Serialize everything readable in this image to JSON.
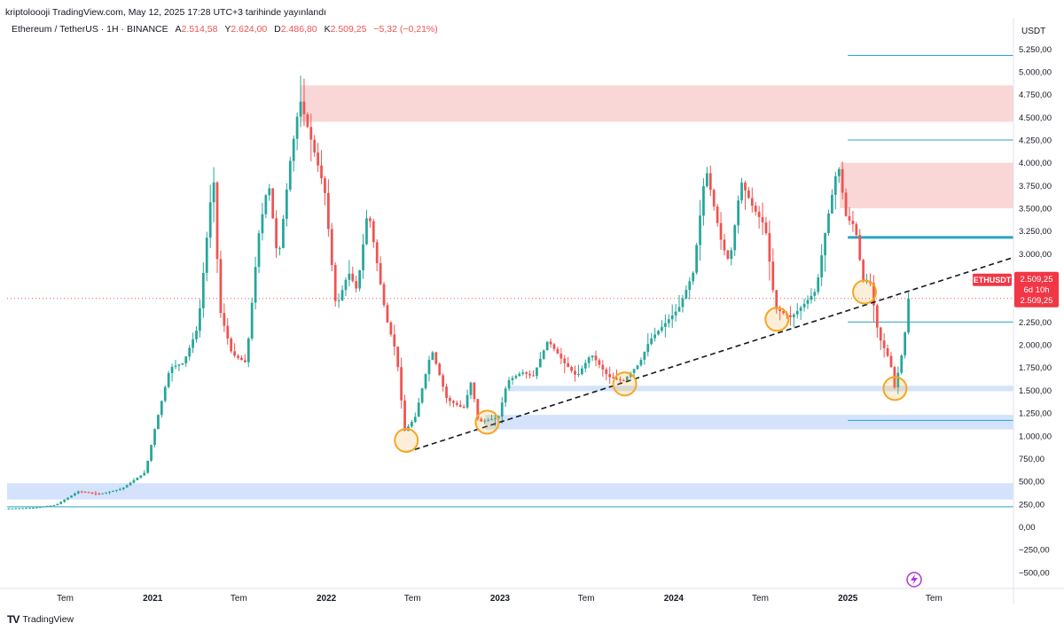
{
  "header": {
    "publish_line": "kriptoloooji TradingView.com, May 12, 2025 17:28 UTC+3 tarihinde yayınlandı"
  },
  "legend": {
    "symbol": "Ethereum / TetherUS · 1H · BINANCE",
    "open_label": "A",
    "open_value": "2.514,58",
    "high_label": "Y",
    "high_value": "2.624,00",
    "low_label": "D",
    "low_value": "2.486,80",
    "close_label": "K",
    "close_value": "2.509,25",
    "change": "−5,32 (−0,21%)"
  },
  "footer": {
    "brand": "TradingView"
  },
  "colors": {
    "up": "#26a69a",
    "down": "#ef5350",
    "resistance_zone": "#f8d0d0",
    "support_zone": "#cfe0fb",
    "level_line": "#26a5c7",
    "trendline": "#131722",
    "circle": "#f5a623",
    "price_badge": "#f23645"
  },
  "chart_data": {
    "type": "candlestick",
    "title": "Ethereum / TetherUS · 1H · BINANCE",
    "currency_label": "USDT",
    "y_ticks": [
      "5.250,00",
      "5.000,00",
      "4.750,00",
      "4.500,00",
      "4.250,00",
      "4.000,00",
      "3.750,00",
      "3.500,00",
      "3.250,00",
      "3.000,00",
      "2.750,00",
      "2.500,00",
      "2.250,00",
      "2.000,00",
      "1.750,00",
      "1.500,00",
      "1.250,00",
      "1.000,00",
      "750,00",
      "500,00",
      "250,00",
      "0,00",
      "−250,00",
      "−500,00"
    ],
    "y_tick_values": [
      5250,
      5000,
      4750,
      4500,
      4250,
      4000,
      3750,
      3500,
      3250,
      3000,
      2750,
      2500,
      2250,
      2000,
      1750,
      1500,
      1250,
      1000,
      750,
      500,
      250,
      0,
      -250,
      -500
    ],
    "ylim": [
      -560,
      5350
    ],
    "x_ticks": [
      {
        "label": "Tem",
        "date": "2020-07-01"
      },
      {
        "label": "2021",
        "date": "2021-01-01"
      },
      {
        "label": "Tem",
        "date": "2021-07-01"
      },
      {
        "label": "2022",
        "date": "2022-01-01"
      },
      {
        "label": "Tem",
        "date": "2022-07-01"
      },
      {
        "label": "2023",
        "date": "2023-01-01"
      },
      {
        "label": "Tem",
        "date": "2023-07-01"
      },
      {
        "label": "2024",
        "date": "2024-01-01"
      },
      {
        "label": "Tem",
        "date": "2024-07-01"
      },
      {
        "label": "2025",
        "date": "2025-01-01"
      },
      {
        "label": "Tem",
        "date": "2025-07-01"
      }
    ],
    "xlim": [
      "2020-03-01",
      "2025-12-15"
    ],
    "price_path": [
      [
        "2020-03-01",
        200
      ],
      [
        "2020-05-01",
        210
      ],
      [
        "2020-06-15",
        240
      ],
      [
        "2020-08-01",
        390
      ],
      [
        "2020-09-15",
        360
      ],
      [
        "2020-11-01",
        420
      ],
      [
        "2020-12-20",
        600
      ],
      [
        "2021-01-10",
        1100
      ],
      [
        "2021-02-10",
        1750
      ],
      [
        "2021-03-10",
        1800
      ],
      [
        "2021-04-10",
        2200
      ],
      [
        "2021-05-12",
        3900
      ],
      [
        "2021-05-25",
        2400
      ],
      [
        "2021-06-20",
        1900
      ],
      [
        "2021-07-20",
        1800
      ],
      [
        "2021-08-15",
        3200
      ],
      [
        "2021-09-05",
        3800
      ],
      [
        "2021-09-25",
        2900
      ],
      [
        "2021-10-20",
        4000
      ],
      [
        "2021-11-10",
        4700
      ],
      [
        "2021-12-01",
        4300
      ],
      [
        "2022-01-01",
        3700
      ],
      [
        "2022-01-25",
        2400
      ],
      [
        "2022-02-20",
        2800
      ],
      [
        "2022-03-10",
        2600
      ],
      [
        "2022-04-02",
        3500
      ],
      [
        "2022-05-10",
        2300
      ],
      [
        "2022-06-01",
        1900
      ],
      [
        "2022-06-18",
        1050
      ],
      [
        "2022-07-10",
        1200
      ],
      [
        "2022-08-14",
        1950
      ],
      [
        "2022-09-15",
        1400
      ],
      [
        "2022-10-20",
        1300
      ],
      [
        "2022-11-05",
        1600
      ],
      [
        "2022-11-20",
        1150
      ],
      [
        "2023-01-01",
        1200
      ],
      [
        "2023-01-20",
        1600
      ],
      [
        "2023-02-20",
        1700
      ],
      [
        "2023-03-15",
        1650
      ],
      [
        "2023-04-15",
        2050
      ],
      [
        "2023-05-20",
        1800
      ],
      [
        "2023-06-15",
        1650
      ],
      [
        "2023-07-15",
        1900
      ],
      [
        "2023-08-20",
        1650
      ],
      [
        "2023-09-20",
        1600
      ],
      [
        "2023-10-25",
        1800
      ],
      [
        "2023-11-15",
        2050
      ],
      [
        "2023-12-20",
        2250
      ],
      [
        "2024-01-15",
        2400
      ],
      [
        "2024-02-15",
        2800
      ],
      [
        "2024-03-12",
        3950
      ],
      [
        "2024-04-15",
        3100
      ],
      [
        "2024-05-01",
        2900
      ],
      [
        "2024-05-25",
        3800
      ],
      [
        "2024-06-20",
        3500
      ],
      [
        "2024-07-15",
        3300
      ],
      [
        "2024-08-05",
        2400
      ],
      [
        "2024-09-07",
        2300
      ],
      [
        "2024-10-05",
        2450
      ],
      [
        "2024-10-30",
        2600
      ],
      [
        "2024-11-20",
        3300
      ],
      [
        "2024-12-15",
        4000
      ],
      [
        "2025-01-01",
        3400
      ],
      [
        "2025-01-20",
        3300
      ],
      [
        "2025-02-05",
        2700
      ],
      [
        "2025-02-20",
        2700
      ],
      [
        "2025-03-10",
        2100
      ],
      [
        "2025-04-05",
        1800
      ],
      [
        "2025-04-09",
        1450
      ],
      [
        "2025-04-25",
        1800
      ],
      [
        "2025-05-08",
        2250
      ],
      [
        "2025-05-12",
        2509
      ]
    ],
    "resistance_zones": [
      {
        "from": "2021-11-08",
        "to": "2025-12-15",
        "low": 4450,
        "high": 4850
      },
      {
        "from": "2024-12-15",
        "to": "2025-12-15",
        "low": 3500,
        "high": 4000
      }
    ],
    "support_zones": [
      {
        "from": "2020-03-01",
        "to": "2025-12-15",
        "low": 300,
        "high": 480
      },
      {
        "from": "2022-12-01",
        "to": "2025-12-15",
        "low": 1070,
        "high": 1230
      },
      {
        "from": "2023-01-20",
        "to": "2025-12-15",
        "low": 1490,
        "high": 1550
      }
    ],
    "level_lines": [
      {
        "from": "2020-03-01",
        "to": "2025-12-15",
        "value": 220,
        "weight": 1
      },
      {
        "from": "2025-01-01",
        "to": "2025-12-15",
        "value": 5180,
        "weight": 1
      },
      {
        "from": "2025-01-01",
        "to": "2025-12-15",
        "value": 4250,
        "weight": 1
      },
      {
        "from": "2025-01-01",
        "to": "2025-12-15",
        "value": 3180,
        "weight": 3
      },
      {
        "from": "2025-01-01",
        "to": "2025-12-15",
        "value": 2250,
        "weight": 1
      },
      {
        "from": "2025-01-01",
        "to": "2025-12-15",
        "value": 1170,
        "weight": 1
      }
    ],
    "trendline": {
      "from": [
        "2022-06-18",
        820
      ],
      "to": [
        "2025-12-15",
        2960
      ]
    },
    "highlight_circles": [
      {
        "date": "2022-06-18",
        "value": 950
      },
      {
        "date": "2022-12-05",
        "value": 1150
      },
      {
        "date": "2023-09-20",
        "value": 1570
      },
      {
        "date": "2024-08-05",
        "value": 2280
      },
      {
        "date": "2025-02-05",
        "value": 2580
      },
      {
        "date": "2025-04-10",
        "value": 1520
      }
    ],
    "current_price": {
      "symbol_badge": "ETHUSDT",
      "price": "2.509,25",
      "countdown": "6d 10h",
      "value": 2509.25
    }
  }
}
